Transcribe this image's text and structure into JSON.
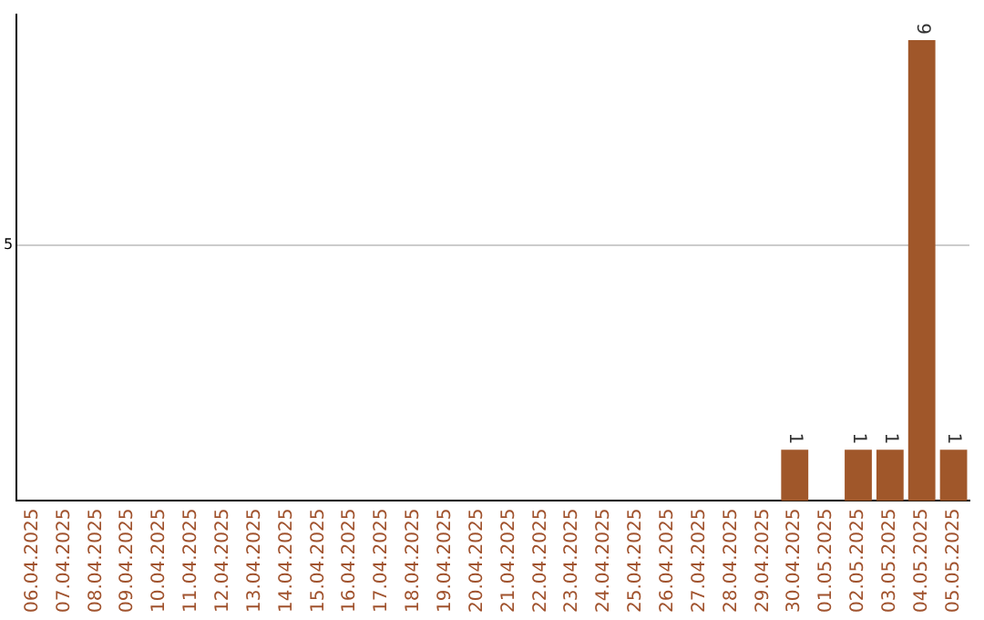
{
  "chart_data": {
    "type": "bar",
    "ylim": [
      0,
      9.5
    ],
    "yticks": [
      5
    ],
    "grid": "y",
    "categories": [
      "06.04.2025",
      "07.04.2025",
      "08.04.2025",
      "09.04.2025",
      "10.04.2025",
      "11.04.2025",
      "12.04.2025",
      "13.04.2025",
      "14.04.2025",
      "15.04.2025",
      "16.04.2025",
      "17.04.2025",
      "18.04.2025",
      "19.04.2025",
      "20.04.2025",
      "21.04.2025",
      "22.04.2025",
      "23.04.2025",
      "24.04.2025",
      "25.04.2025",
      "26.04.2025",
      "27.04.2025",
      "28.04.2025",
      "29.04.2025",
      "30.04.2025",
      "01.05.2025",
      "02.05.2025",
      "03.05.2025",
      "04.05.2025",
      "05.05.2025"
    ],
    "values": [
      null,
      null,
      null,
      null,
      null,
      null,
      null,
      null,
      null,
      null,
      null,
      null,
      null,
      null,
      null,
      null,
      null,
      null,
      null,
      null,
      null,
      null,
      null,
      null,
      1,
      null,
      1,
      1,
      9,
      1
    ],
    "data_labels": true,
    "color": "#a0572a",
    "legend": false
  }
}
